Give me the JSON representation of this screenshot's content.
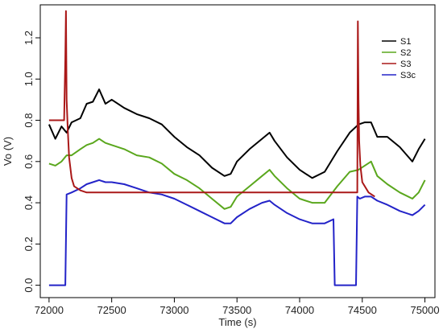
{
  "chart_data": {
    "type": "line",
    "title": "",
    "xlabel": "Time (s)",
    "ylabel": "Vo (V)",
    "xlim": [
      71930,
      75080
    ],
    "ylim": [
      -0.06,
      1.36
    ],
    "xticks": [
      72000,
      72500,
      73000,
      73500,
      74000,
      74500,
      75000
    ],
    "yticks": [
      0.0,
      0.2,
      0.4,
      0.6,
      0.8,
      1.0,
      1.2
    ],
    "xtick_labels": [
      "72000",
      "72500",
      "73000",
      "73500",
      "74000",
      "74500",
      "75000"
    ],
    "ytick_labels": [
      "0.0",
      "0.2",
      "0.4",
      "0.6",
      "0.8",
      "1.0",
      "1.2"
    ],
    "grid": false,
    "legend_position": "top-right",
    "series": [
      {
        "name": "S1",
        "color": "#000000",
        "x": [
          72000,
          72050,
          72100,
          72140,
          72180,
          72250,
          72300,
          72350,
          72400,
          72450,
          72500,
          72600,
          72700,
          72800,
          72900,
          73000,
          73100,
          73200,
          73300,
          73400,
          73450,
          73500,
          73600,
          73700,
          73760,
          73800,
          73900,
          74000,
          74100,
          74200,
          74300,
          74400,
          74470,
          74520,
          74570,
          74620,
          74700,
          74800,
          74900,
          74950,
          75000
        ],
        "y": [
          0.78,
          0.71,
          0.77,
          0.74,
          0.79,
          0.81,
          0.88,
          0.89,
          0.95,
          0.88,
          0.9,
          0.86,
          0.83,
          0.81,
          0.78,
          0.72,
          0.67,
          0.63,
          0.57,
          0.53,
          0.54,
          0.6,
          0.66,
          0.71,
          0.74,
          0.7,
          0.62,
          0.56,
          0.52,
          0.55,
          0.65,
          0.74,
          0.78,
          0.79,
          0.79,
          0.72,
          0.72,
          0.67,
          0.6,
          0.66,
          0.71
        ]
      },
      {
        "name": "S2",
        "color": "#5aa71d",
        "x": [
          72000,
          72050,
          72100,
          72140,
          72180,
          72250,
          72300,
          72350,
          72400,
          72450,
          72500,
          72600,
          72700,
          72800,
          72900,
          73000,
          73100,
          73200,
          73300,
          73400,
          73450,
          73500,
          73600,
          73700,
          73760,
          73800,
          73900,
          74000,
          74100,
          74200,
          74300,
          74400,
          74470,
          74520,
          74570,
          74620,
          74700,
          74800,
          74900,
          74950,
          75000
        ],
        "y": [
          0.59,
          0.58,
          0.6,
          0.63,
          0.63,
          0.66,
          0.68,
          0.69,
          0.71,
          0.69,
          0.68,
          0.66,
          0.63,
          0.62,
          0.59,
          0.54,
          0.51,
          0.47,
          0.42,
          0.37,
          0.38,
          0.43,
          0.48,
          0.53,
          0.56,
          0.53,
          0.47,
          0.42,
          0.4,
          0.4,
          0.48,
          0.55,
          0.56,
          0.58,
          0.6,
          0.53,
          0.49,
          0.45,
          0.42,
          0.45,
          0.51
        ]
      },
      {
        "name": "S3",
        "color": "#aa1818",
        "x": [
          72000,
          72120,
          72130,
          72135,
          72140,
          72150,
          72160,
          72180,
          72200,
          72250,
          72300,
          74460,
          74465,
          74470,
          74475,
          74485,
          74500,
          74550,
          74600
        ],
        "y": [
          0.8,
          0.8,
          1.1,
          1.33,
          0.9,
          0.75,
          0.62,
          0.52,
          0.48,
          0.46,
          0.45,
          0.45,
          1.28,
          0.9,
          0.7,
          0.58,
          0.5,
          0.45,
          0.43
        ]
      },
      {
        "name": "S3c",
        "color": "#2323c8",
        "x": [
          72000,
          72100,
          72130,
          72140,
          72180,
          72250,
          72300,
          72350,
          72400,
          72450,
          72500,
          72600,
          72700,
          72800,
          72900,
          73000,
          73100,
          73200,
          73300,
          73400,
          73450,
          73500,
          73600,
          73700,
          73760,
          73800,
          73900,
          74000,
          74100,
          74200,
          74270,
          74280,
          74290,
          74300,
          74350,
          74400,
          74450,
          74460,
          74480,
          74520,
          74570,
          74620,
          74700,
          74800,
          74900,
          74950,
          75000
        ],
        "y": [
          0.0,
          0.0,
          0.0,
          0.44,
          0.45,
          0.47,
          0.49,
          0.5,
          0.51,
          0.5,
          0.5,
          0.49,
          0.47,
          0.45,
          0.44,
          0.42,
          0.39,
          0.36,
          0.33,
          0.3,
          0.3,
          0.33,
          0.37,
          0.4,
          0.41,
          0.39,
          0.35,
          0.32,
          0.3,
          0.3,
          0.32,
          0.0,
          0.0,
          0.0,
          0.0,
          0.0,
          0.0,
          0.43,
          0.42,
          0.43,
          0.43,
          0.41,
          0.39,
          0.36,
          0.34,
          0.36,
          0.39
        ]
      }
    ]
  }
}
